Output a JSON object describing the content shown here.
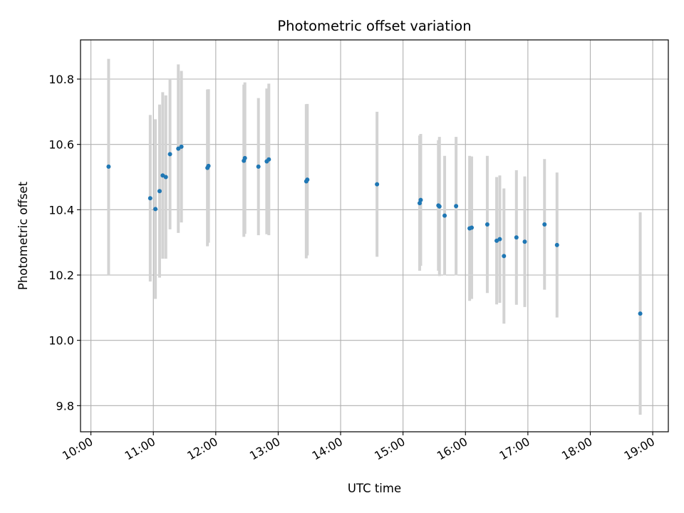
{
  "chart_data": {
    "type": "scatter",
    "title": "Photometric offset variation",
    "xlabel": "UTC time",
    "ylabel": "Photometric offset",
    "x_ticks": [
      "10:00",
      "11:00",
      "12:00",
      "13:00",
      "14:00",
      "15:00",
      "16:00",
      "17:00",
      "18:00",
      "19:00"
    ],
    "y_ticks": [
      "9.8",
      "10.0",
      "10.2",
      "10.4",
      "10.6",
      "10.8"
    ],
    "xlim": [
      "09:50",
      "19:15"
    ],
    "ylim": [
      9.72,
      10.92
    ],
    "grid": true,
    "point_color": "#1f77b4",
    "errorbar_color": "#d3d3d3",
    "points": [
      {
        "x": "10:17",
        "y": 10.532,
        "err": 0.33
      },
      {
        "x": "10:57",
        "y": 10.435,
        "err": 0.255
      },
      {
        "x": "11:02",
        "y": 10.402,
        "err": 0.275
      },
      {
        "x": "11:06",
        "y": 10.457,
        "err": 0.265
      },
      {
        "x": "11:09",
        "y": 10.505,
        "err": 0.255
      },
      {
        "x": "11:12",
        "y": 10.5,
        "err": 0.25
      },
      {
        "x": "11:16",
        "y": 10.57,
        "err": 0.23
      },
      {
        "x": "11:24",
        "y": 10.587,
        "err": 0.258
      },
      {
        "x": "11:27",
        "y": 10.593,
        "err": 0.232
      },
      {
        "x": "11:52",
        "y": 10.528,
        "err": 0.24
      },
      {
        "x": "11:53",
        "y": 10.534,
        "err": 0.235
      },
      {
        "x": "12:27",
        "y": 10.55,
        "err": 0.233
      },
      {
        "x": "12:28",
        "y": 10.558,
        "err": 0.232
      },
      {
        "x": "12:41",
        "y": 10.532,
        "err": 0.21
      },
      {
        "x": "12:49",
        "y": 10.548,
        "err": 0.223
      },
      {
        "x": "12:51",
        "y": 10.554,
        "err": 0.232
      },
      {
        "x": "13:27",
        "y": 10.487,
        "err": 0.236
      },
      {
        "x": "13:28",
        "y": 10.492,
        "err": 0.232
      },
      {
        "x": "14:35",
        "y": 10.478,
        "err": 0.222
      },
      {
        "x": "15:16",
        "y": 10.42,
        "err": 0.207
      },
      {
        "x": "15:17",
        "y": 10.43,
        "err": 0.202
      },
      {
        "x": "15:34",
        "y": 10.413,
        "err": 0.2
      },
      {
        "x": "15:35",
        "y": 10.41,
        "err": 0.213
      },
      {
        "x": "15:40",
        "y": 10.382,
        "err": 0.183
      },
      {
        "x": "15:51",
        "y": 10.411,
        "err": 0.212
      },
      {
        "x": "16:04",
        "y": 10.343,
        "err": 0.222
      },
      {
        "x": "16:06",
        "y": 10.345,
        "err": 0.218
      },
      {
        "x": "16:21",
        "y": 10.355,
        "err": 0.21
      },
      {
        "x": "16:30",
        "y": 10.305,
        "err": 0.195
      },
      {
        "x": "16:33",
        "y": 10.31,
        "err": 0.195
      },
      {
        "x": "16:37",
        "y": 10.258,
        "err": 0.207
      },
      {
        "x": "16:49",
        "y": 10.315,
        "err": 0.206
      },
      {
        "x": "16:57",
        "y": 10.302,
        "err": 0.2
      },
      {
        "x": "17:16",
        "y": 10.355,
        "err": 0.2
      },
      {
        "x": "17:28",
        "y": 10.292,
        "err": 0.222
      },
      {
        "x": "18:48",
        "y": 10.082,
        "err": 0.31
      }
    ]
  }
}
